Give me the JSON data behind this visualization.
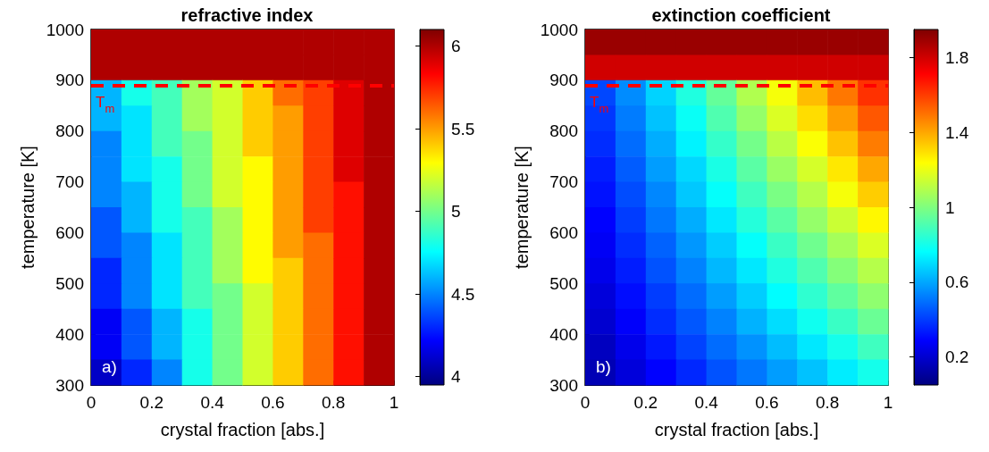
{
  "chart_data": [
    {
      "type": "heatmap",
      "title": "refractive index",
      "xlabel": "crystal fraction [abs.]",
      "ylabel": "temperature [K]",
      "x": [
        0.05,
        0.15,
        0.25,
        0.35,
        0.45,
        0.55,
        0.65,
        0.75,
        0.85,
        0.95
      ],
      "y": [
        975,
        925,
        875,
        825,
        775,
        725,
        675,
        625,
        575,
        525,
        475,
        425,
        375,
        325
      ],
      "cells": [
        [
          6.0,
          6.0,
          6.0,
          6.0,
          6.0,
          6.0,
          6.0,
          6.0,
          6.0,
          6.0
        ],
        [
          6.0,
          6.0,
          6.0,
          6.0,
          6.0,
          6.0,
          6.0,
          6.0,
          6.0,
          6.0
        ],
        [
          4.6,
          4.8,
          4.9,
          5.1,
          5.2,
          5.4,
          5.6,
          5.7,
          5.9,
          6.0
        ],
        [
          4.6,
          4.7,
          4.9,
          5.1,
          5.2,
          5.4,
          5.5,
          5.7,
          5.9,
          6.0
        ],
        [
          4.5,
          4.7,
          4.9,
          5.0,
          5.2,
          5.4,
          5.5,
          5.7,
          5.9,
          6.0
        ],
        [
          4.5,
          4.7,
          4.8,
          5.0,
          5.2,
          5.3,
          5.5,
          5.7,
          5.9,
          6.0
        ],
        [
          4.5,
          4.6,
          4.8,
          5.0,
          5.2,
          5.3,
          5.5,
          5.7,
          5.8,
          6.0
        ],
        [
          4.4,
          4.6,
          4.8,
          4.9,
          5.1,
          5.3,
          5.5,
          5.7,
          5.8,
          6.0
        ],
        [
          4.4,
          4.5,
          4.7,
          4.9,
          5.1,
          5.3,
          5.5,
          5.6,
          5.8,
          6.0
        ],
        [
          4.3,
          4.5,
          4.7,
          4.9,
          5.1,
          5.3,
          5.4,
          5.6,
          5.8,
          6.0
        ],
        [
          4.3,
          4.5,
          4.7,
          4.9,
          5.0,
          5.2,
          5.4,
          5.6,
          5.8,
          6.0
        ],
        [
          4.2,
          4.4,
          4.6,
          4.8,
          5.0,
          5.2,
          5.4,
          5.6,
          5.8,
          6.0
        ],
        [
          4.2,
          4.4,
          4.6,
          4.8,
          5.0,
          5.2,
          5.4,
          5.6,
          5.8,
          6.0
        ],
        [
          4.1,
          4.3,
          4.5,
          4.8,
          5.0,
          5.2,
          5.4,
          5.6,
          5.8,
          6.0
        ]
      ],
      "xlim": [
        0,
        1
      ],
      "xticks": [
        0,
        0.2,
        0.4,
        0.6,
        0.8,
        1
      ],
      "ylim": [
        300,
        1000
      ],
      "yticks": [
        300,
        400,
        500,
        600,
        700,
        800,
        900,
        1000
      ],
      "clim": [
        3.95,
        6.1
      ],
      "cticks": [
        4,
        4.5,
        5,
        5.5,
        6
      ],
      "ref_lines": [
        {
          "axis": "y",
          "value": 890,
          "label": "T$_{m}$",
          "color": "#ff0000",
          "line_style": "dashed"
        }
      ],
      "annotations": [
        "a)"
      ]
    },
    {
      "type": "heatmap",
      "title": "extinction coefficient",
      "xlabel": "crystal fraction [abs.]",
      "ylabel": "temperature [K]",
      "x": [
        0.05,
        0.15,
        0.25,
        0.35,
        0.45,
        0.55,
        0.65,
        0.75,
        0.85,
        0.95
      ],
      "y": [
        975,
        925,
        875,
        825,
        775,
        725,
        675,
        625,
        575,
        525,
        475,
        425,
        375,
        325
      ],
      "cells": [
        [
          1.9,
          1.9,
          1.9,
          1.9,
          1.9,
          1.9,
          1.9,
          1.9,
          1.9,
          1.9
        ],
        [
          1.8,
          1.8,
          1.8,
          1.8,
          1.8,
          1.8,
          1.8,
          1.8,
          1.8,
          1.8
        ],
        [
          0.42,
          0.55,
          0.68,
          0.82,
          0.95,
          1.09,
          1.22,
          1.36,
          1.49,
          1.62
        ],
        [
          0.39,
          0.52,
          0.65,
          0.78,
          0.91,
          1.04,
          1.17,
          1.3,
          1.42,
          1.55
        ],
        [
          0.37,
          0.49,
          0.61,
          0.74,
          0.86,
          0.98,
          1.11,
          1.23,
          1.35,
          1.48
        ],
        [
          0.34,
          0.46,
          0.58,
          0.69,
          0.81,
          0.93,
          1.05,
          1.16,
          1.28,
          1.4
        ],
        [
          0.32,
          0.43,
          0.54,
          0.66,
          0.77,
          0.88,
          0.99,
          1.1,
          1.22,
          1.33
        ],
        [
          0.29,
          0.4,
          0.51,
          0.61,
          0.72,
          0.83,
          0.93,
          1.04,
          1.14,
          1.25
        ],
        [
          0.27,
          0.37,
          0.47,
          0.57,
          0.67,
          0.77,
          0.87,
          0.97,
          1.07,
          1.17
        ],
        [
          0.25,
          0.34,
          0.44,
          0.53,
          0.63,
          0.72,
          0.82,
          0.91,
          1.01,
          1.1
        ],
        [
          0.22,
          0.31,
          0.4,
          0.49,
          0.58,
          0.67,
          0.76,
          0.85,
          0.94,
          1.03
        ],
        [
          0.2,
          0.28,
          0.37,
          0.45,
          0.53,
          0.62,
          0.7,
          0.79,
          0.87,
          0.96
        ],
        [
          0.17,
          0.25,
          0.33,
          0.41,
          0.49,
          0.56,
          0.64,
          0.72,
          0.8,
          0.88
        ],
        [
          0.15,
          0.22,
          0.29,
          0.36,
          0.44,
          0.51,
          0.58,
          0.65,
          0.73,
          0.8
        ]
      ],
      "xlim": [
        0,
        1
      ],
      "xticks": [
        0,
        0.2,
        0.4,
        0.6,
        0.8,
        1
      ],
      "ylim": [
        300,
        1000
      ],
      "yticks": [
        300,
        400,
        500,
        600,
        700,
        800,
        900,
        1000
      ],
      "clim": [
        0.05,
        1.95
      ],
      "cticks": [
        0.2,
        0.6,
        1,
        1.4,
        1.8
      ],
      "ref_lines": [
        {
          "axis": "y",
          "value": 890,
          "label": "T$_{m}$",
          "color": "#ff0000",
          "line_style": "dashed"
        }
      ],
      "annotations": [
        "b)"
      ]
    }
  ]
}
